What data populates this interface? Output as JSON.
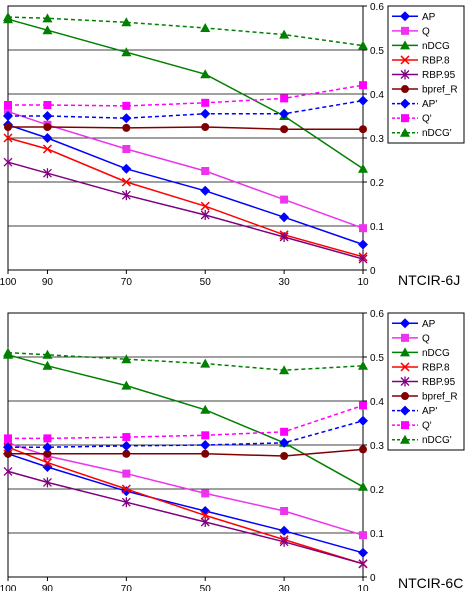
{
  "chart_data": [
    {
      "type": "line",
      "title": "NTCIR-6J",
      "x": [
        100,
        90,
        70,
        50,
        30,
        10
      ],
      "xlim": [
        100,
        10
      ],
      "ylim": [
        0,
        0.6
      ],
      "yticks": [
        "0",
        "0.1",
        "0.2",
        "0.3",
        "0.4",
        "0.5",
        "0.6"
      ],
      "xticks": [
        "100",
        "90",
        "70",
        "50",
        "30",
        "10"
      ],
      "grid": true,
      "legend": "right",
      "series": [
        {
          "name": "AP",
          "color": "#0000ff",
          "marker": "diamond",
          "dash": false,
          "values": [
            0.33,
            0.3,
            0.23,
            0.18,
            0.12,
            0.058
          ]
        },
        {
          "name": "Q",
          "color": "#ee33ee",
          "marker": "square",
          "dash": false,
          "values": [
            0.36,
            0.33,
            0.275,
            0.225,
            0.16,
            0.095
          ]
        },
        {
          "name": "nDCG",
          "color": "#008000",
          "marker": "triangle",
          "dash": false,
          "values": [
            0.57,
            0.545,
            0.495,
            0.445,
            0.35,
            0.23
          ]
        },
        {
          "name": "RBP.8",
          "color": "#ff0000",
          "marker": "x",
          "dash": false,
          "values": [
            0.3,
            0.275,
            0.2,
            0.145,
            0.08,
            0.03
          ]
        },
        {
          "name": "RBP.95",
          "color": "#800080",
          "marker": "star",
          "dash": false,
          "values": [
            0.245,
            0.22,
            0.17,
            0.125,
            0.075,
            0.025
          ]
        },
        {
          "name": "bpref_R",
          "color": "#800000",
          "marker": "circle",
          "dash": false,
          "values": [
            0.325,
            0.325,
            0.323,
            0.325,
            0.32,
            0.32
          ]
        },
        {
          "name": "AP'",
          "color": "#0000ff",
          "marker": "diamond",
          "dash": true,
          "values": [
            0.35,
            0.35,
            0.345,
            0.355,
            0.355,
            0.385
          ]
        },
        {
          "name": "Q'",
          "color": "#ff00ff",
          "marker": "square",
          "dash": true,
          "values": [
            0.375,
            0.375,
            0.373,
            0.38,
            0.39,
            0.42
          ]
        },
        {
          "name": "nDCG'",
          "color": "#008000",
          "marker": "triangle",
          "dash": true,
          "values": [
            0.575,
            0.572,
            0.563,
            0.55,
            0.535,
            0.51
          ]
        }
      ]
    },
    {
      "type": "line",
      "title": "NTCIR-6C",
      "x": [
        100,
        90,
        70,
        50,
        30,
        10
      ],
      "xlim": [
        100,
        10
      ],
      "ylim": [
        0,
        0.6
      ],
      "yticks": [
        "0",
        "0.1",
        "0.2",
        "0.3",
        "0.4",
        "0.5",
        "0.6"
      ],
      "xticks": [
        "100",
        "90",
        "70",
        "50",
        "30",
        "10"
      ],
      "grid": true,
      "legend": "right",
      "series": [
        {
          "name": "AP",
          "color": "#0000ff",
          "marker": "diamond",
          "dash": false,
          "values": [
            0.28,
            0.25,
            0.195,
            0.15,
            0.105,
            0.055
          ]
        },
        {
          "name": "Q",
          "color": "#ee33ee",
          "marker": "square",
          "dash": false,
          "values": [
            0.305,
            0.275,
            0.235,
            0.19,
            0.15,
            0.095
          ]
        },
        {
          "name": "nDCG",
          "color": "#008000",
          "marker": "triangle",
          "dash": false,
          "values": [
            0.505,
            0.48,
            0.435,
            0.38,
            0.305,
            0.205
          ]
        },
        {
          "name": "RBP.8",
          "color": "#ff0000",
          "marker": "x",
          "dash": false,
          "values": [
            0.295,
            0.26,
            0.2,
            0.14,
            0.085,
            0.03
          ]
        },
        {
          "name": "RBP.95",
          "color": "#800080",
          "marker": "star",
          "dash": false,
          "values": [
            0.24,
            0.215,
            0.17,
            0.125,
            0.08,
            0.03
          ]
        },
        {
          "name": "bpref_R",
          "color": "#800000",
          "marker": "circle",
          "dash": false,
          "values": [
            0.28,
            0.28,
            0.28,
            0.28,
            0.275,
            0.29
          ]
        },
        {
          "name": "AP'",
          "color": "#0000ff",
          "marker": "diamond",
          "dash": true,
          "values": [
            0.295,
            0.295,
            0.298,
            0.3,
            0.305,
            0.355
          ]
        },
        {
          "name": "Q'",
          "color": "#ff00ff",
          "marker": "square",
          "dash": true,
          "values": [
            0.315,
            0.315,
            0.318,
            0.322,
            0.33,
            0.39
          ]
        },
        {
          "name": "nDCG'",
          "color": "#008000",
          "marker": "triangle",
          "dash": true,
          "values": [
            0.51,
            0.505,
            0.495,
            0.485,
            0.47,
            0.48
          ]
        }
      ]
    }
  ]
}
